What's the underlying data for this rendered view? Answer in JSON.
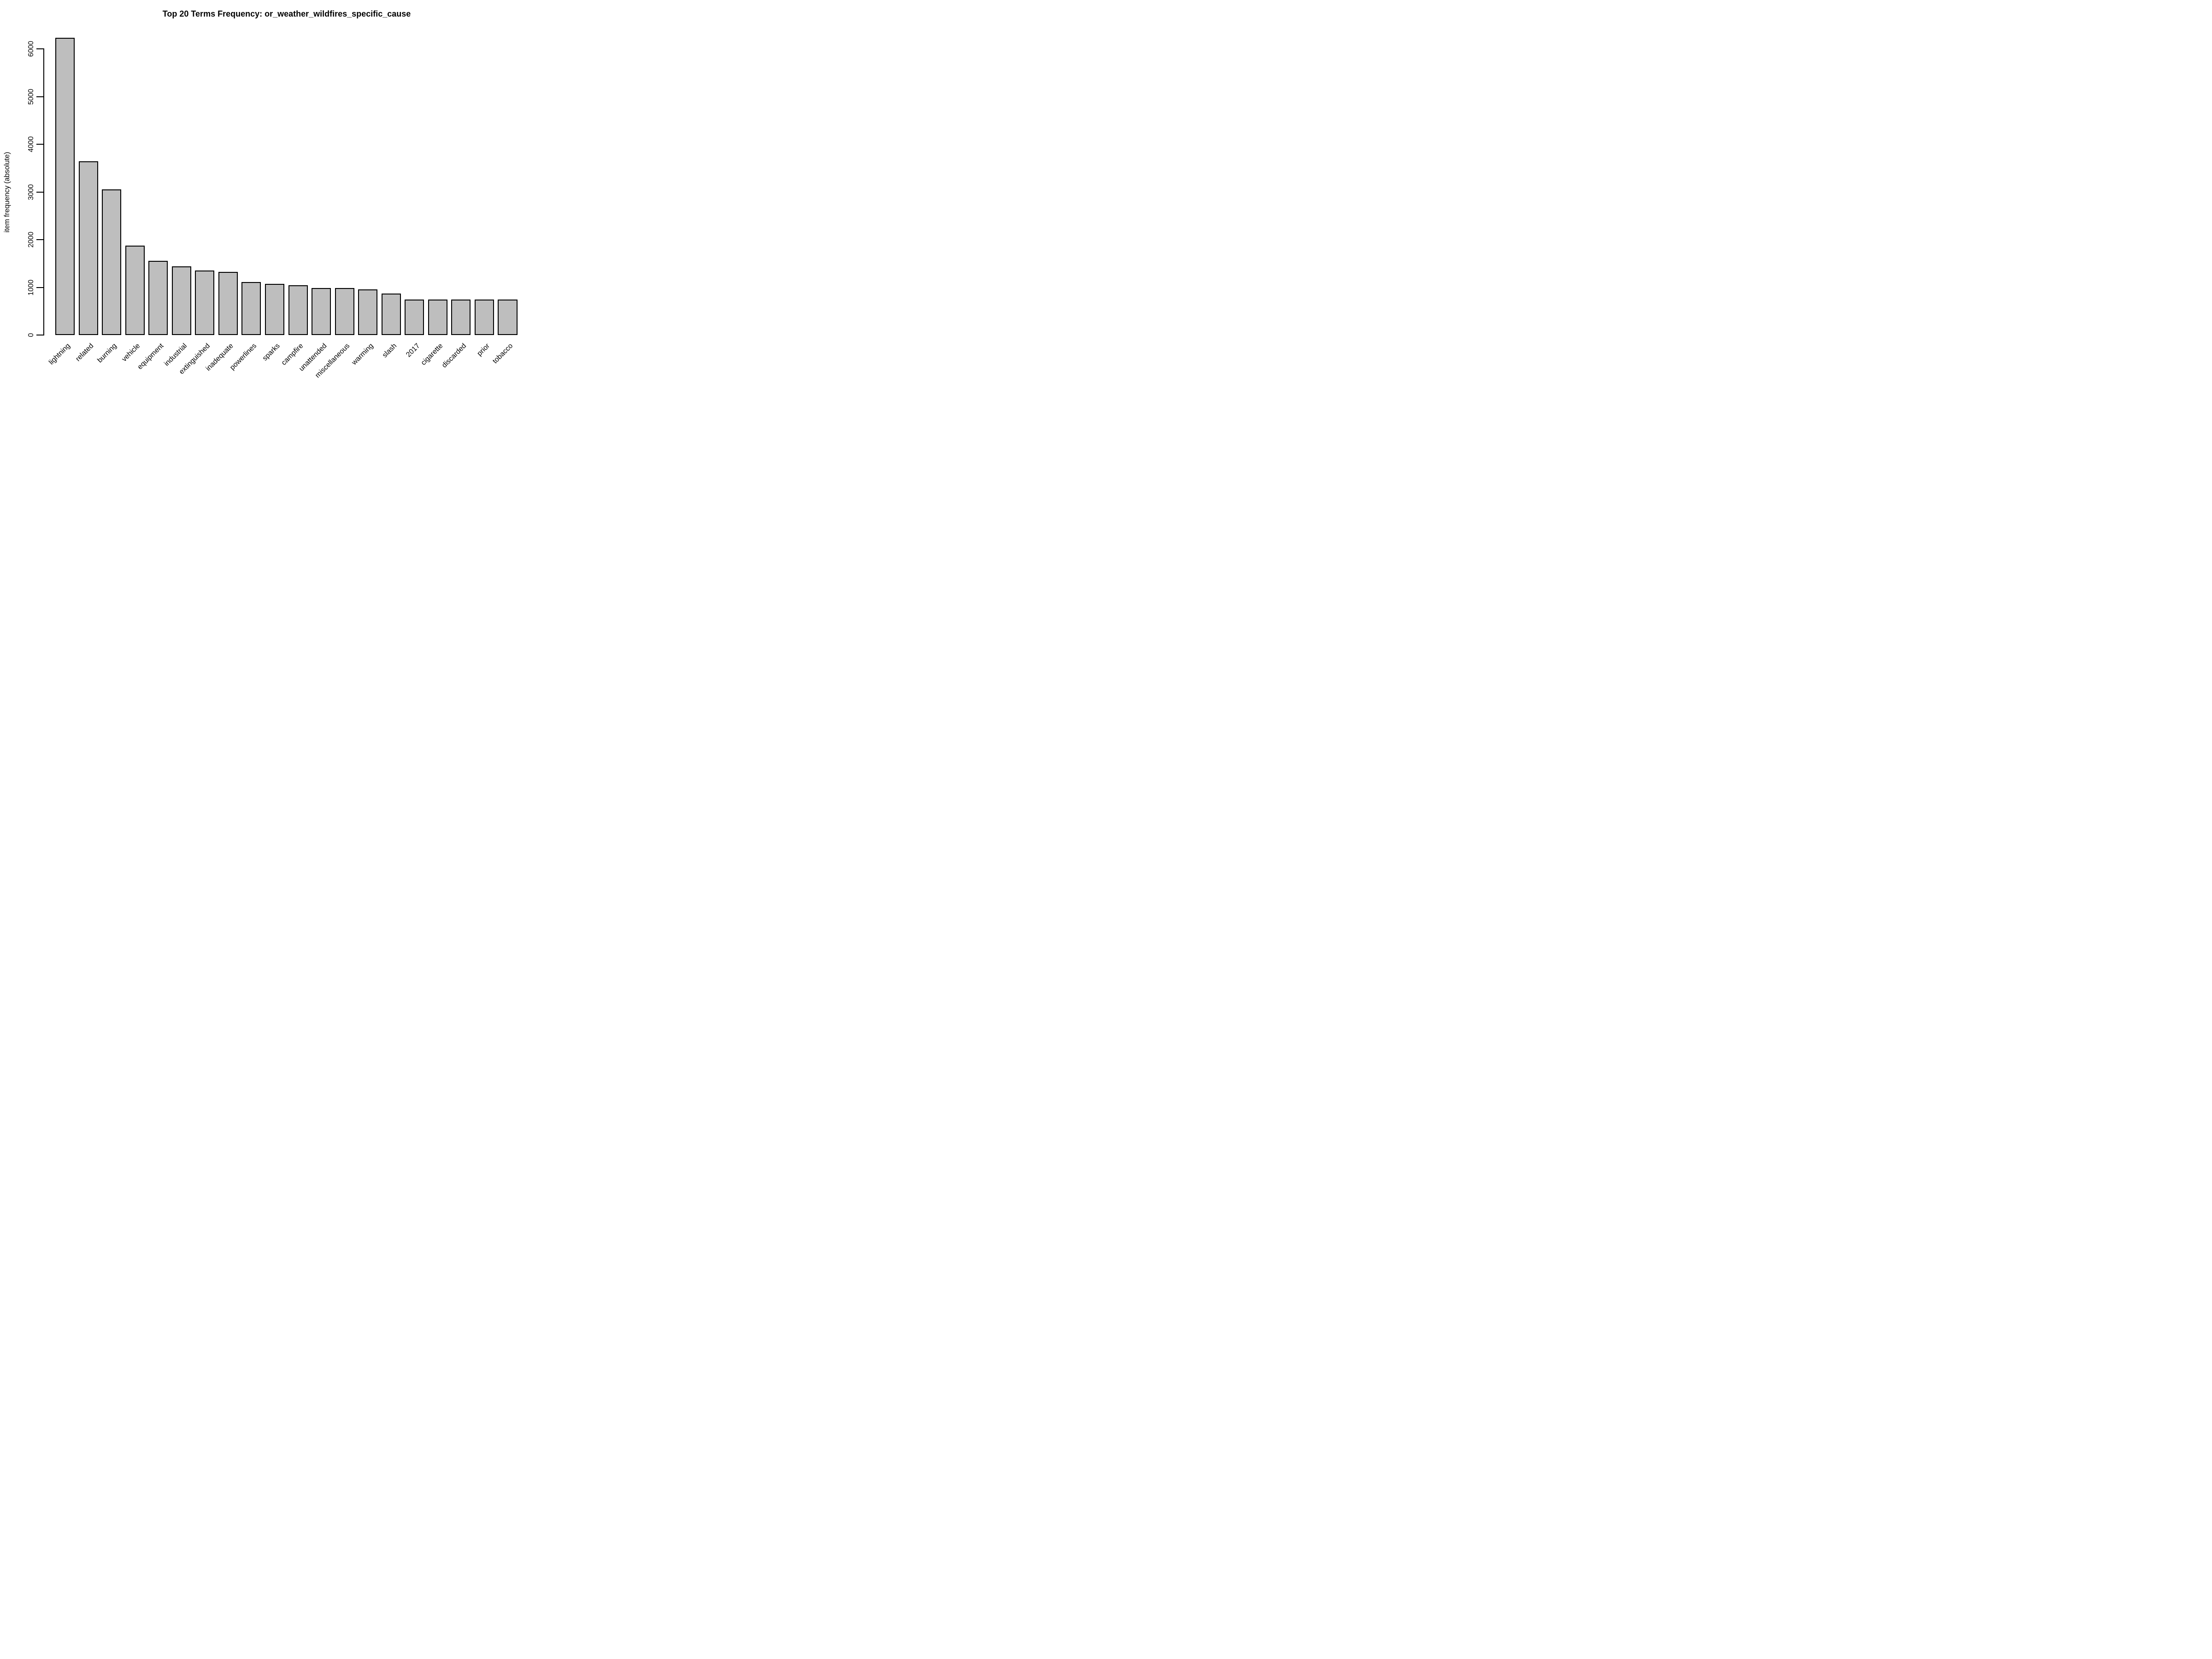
{
  "chart_data": {
    "type": "bar",
    "title": "Top 20 Terms Frequency: or_weather_wildfires_specific_cause",
    "ylabel": "item frequency (absolute)",
    "xlabel": "",
    "categories": [
      "lightning",
      "related",
      "burning",
      "vehicle",
      "equipment",
      "industrial",
      "extinguished",
      "inadequate",
      "powerlines",
      "sparks",
      "campfire",
      "unattended",
      "miscellaneous",
      "warming",
      "slash",
      "2017",
      "cigarette",
      "discarded",
      "prior",
      "tobacco"
    ],
    "values": [
      6230,
      3640,
      3055,
      1880,
      1560,
      1440,
      1355,
      1325,
      1110,
      1070,
      1045,
      990,
      985,
      958,
      870,
      750,
      750,
      750,
      750,
      750
    ],
    "yticks": [
      0,
      1000,
      2000,
      3000,
      4000,
      5000,
      6000
    ],
    "ylim": [
      0,
      6400
    ],
    "grid": false,
    "legend": false,
    "bar_fill": "#bebebe",
    "bar_border": "#000000",
    "background": "#ffffff"
  }
}
